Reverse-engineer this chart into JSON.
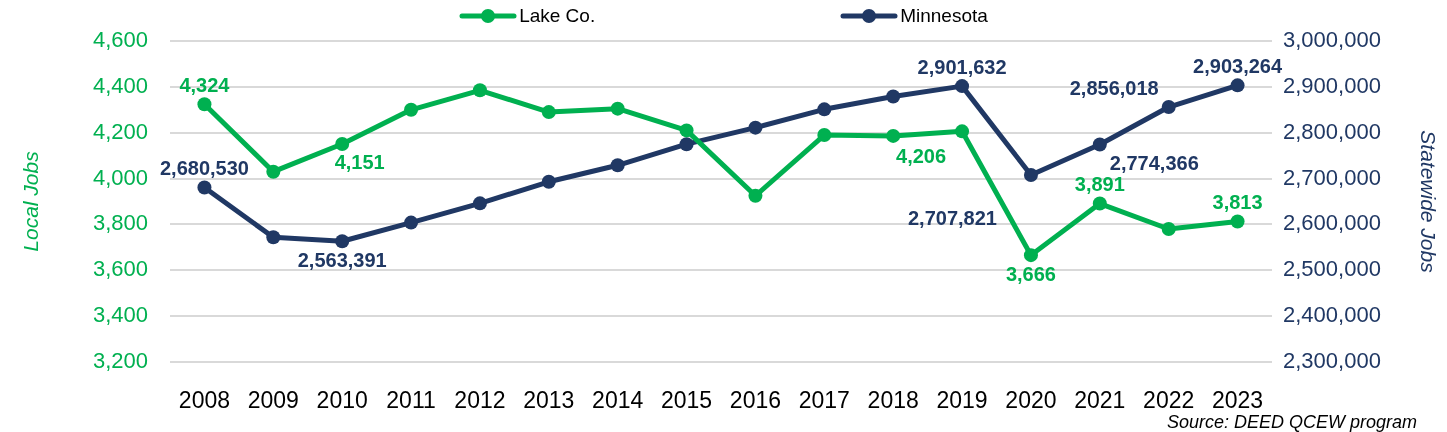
{
  "chart_data": {
    "type": "line",
    "categories": [
      "2008",
      "2009",
      "2010",
      "2011",
      "2012",
      "2013",
      "2014",
      "2015",
      "2016",
      "2017",
      "2018",
      "2019",
      "2020",
      "2021",
      "2022",
      "2023"
    ],
    "series": [
      {
        "name": "Lake Co.",
        "color": "#00b050",
        "values": [
          4324,
          4030,
          4151,
          4300,
          4385,
          4290,
          4305,
          4210,
          3925,
          4190,
          4186,
          4206,
          3666,
          3891,
          3780,
          3813
        ],
        "value_labels": [
          "4,324",
          null,
          "4,151",
          null,
          null,
          null,
          null,
          null,
          null,
          null,
          null,
          "4,206",
          "3,666",
          "3,891",
          null,
          "3,813"
        ]
      },
      {
        "name": "Minnesota",
        "color": "#203864",
        "axis": "y2",
        "values": [
          2680530,
          2572000,
          2563391,
          2604000,
          2646000,
          2693000,
          2729000,
          2775000,
          2811000,
          2851000,
          2879000,
          2901632,
          2707821,
          2774366,
          2856018,
          2903264
        ],
        "value_labels": [
          "2,680,530",
          null,
          "2,563,391",
          null,
          null,
          null,
          null,
          null,
          null,
          null,
          null,
          "2,901,632",
          "2,707,821",
          "2,774,366",
          "2,856,018",
          "2,903,264"
        ]
      }
    ],
    "ylim": [
      3200,
      4600
    ],
    "yticks": [
      {
        "value": 3200,
        "label": "3,200"
      },
      {
        "value": 3400,
        "label": "3,400"
      },
      {
        "value": 3600,
        "label": "3,600"
      },
      {
        "value": 3800,
        "label": "3,800"
      },
      {
        "value": 4000,
        "label": "4,000"
      },
      {
        "value": 4200,
        "label": "4,200"
      },
      {
        "value": 4400,
        "label": "4,400"
      },
      {
        "value": 4600,
        "label": "4,600"
      }
    ],
    "y2lim": [
      2300000,
      3000000
    ],
    "y2ticks": [
      {
        "value": 2300000,
        "label": "2,300,000"
      },
      {
        "value": 2400000,
        "label": "2,400,000"
      },
      {
        "value": 2500000,
        "label": "2,500,000"
      },
      {
        "value": 2600000,
        "label": "2,600,000"
      },
      {
        "value": 2700000,
        "label": "2,700,000"
      },
      {
        "value": 2800000,
        "label": "2,800,000"
      },
      {
        "value": 2900000,
        "label": "2,900,000"
      },
      {
        "value": 3000000,
        "label": "3,000,000"
      }
    ],
    "ylabel": "Local Jobs",
    "y2label": "Statewide Jobs",
    "legend": "top",
    "grid": "y",
    "marker": "circle",
    "line_style": "solid",
    "annotations": [
      "Source: DEED QCEW program"
    ]
  }
}
